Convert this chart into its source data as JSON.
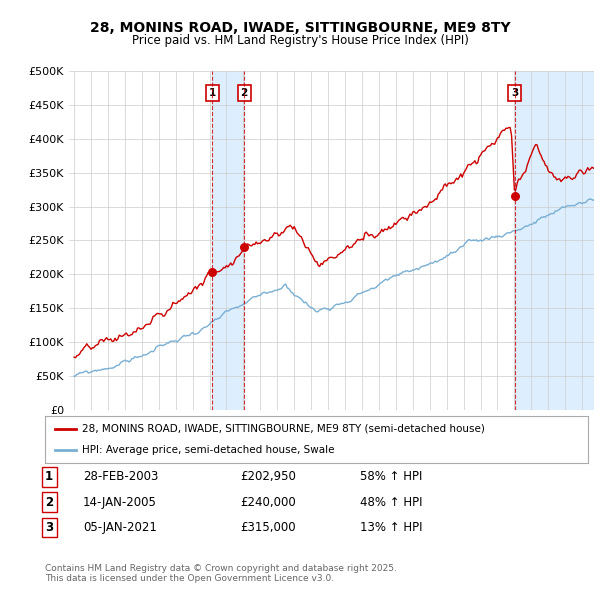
{
  "title": "28, MONINS ROAD, IWADE, SITTINGBOURNE, ME9 8TY",
  "subtitle": "Price paid vs. HM Land Registry's House Price Index (HPI)",
  "ylim": [
    0,
    500000
  ],
  "yticks": [
    0,
    50000,
    100000,
    150000,
    200000,
    250000,
    300000,
    350000,
    400000,
    450000,
    500000
  ],
  "ytick_labels": [
    "£0",
    "£50K",
    "£100K",
    "£150K",
    "£200K",
    "£250K",
    "£300K",
    "£350K",
    "£400K",
    "£450K",
    "£500K"
  ],
  "xlim_start": 1994.7,
  "xlim_end": 2025.7,
  "transaction_dates": [
    2003.16,
    2005.04,
    2021.01
  ],
  "transaction_prices": [
    202950,
    240000,
    315000
  ],
  "transaction_labels": [
    "1",
    "2",
    "3"
  ],
  "legend_line1": "28, MONINS ROAD, IWADE, SITTINGBOURNE, ME9 8TY (semi-detached house)",
  "legend_line2": "HPI: Average price, semi-detached house, Swale",
  "table_rows": [
    [
      "1",
      "28-FEB-2003",
      "£202,950",
      "58% ↑ HPI"
    ],
    [
      "2",
      "14-JAN-2005",
      "£240,000",
      "48% ↑ HPI"
    ],
    [
      "3",
      "05-JAN-2021",
      "£315,000",
      "13% ↑ HPI"
    ]
  ],
  "footnote": "Contains HM Land Registry data © Crown copyright and database right 2025.\nThis data is licensed under the Open Government Licence v3.0.",
  "red_color": "#cc0000",
  "blue_color": "#7aafd4",
  "shade_color": "#ddeeff",
  "bg_color": "#ffffff",
  "grid_color": "#cccccc"
}
